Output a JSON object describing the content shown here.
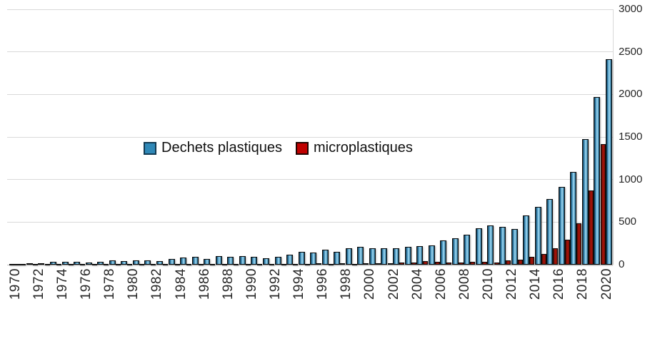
{
  "chart_data": {
    "type": "bar",
    "title": "",
    "xlabel": "",
    "ylabel": "",
    "x": [
      1970,
      1971,
      1972,
      1973,
      1974,
      1975,
      1976,
      1977,
      1978,
      1979,
      1980,
      1981,
      1982,
      1983,
      1984,
      1985,
      1986,
      1987,
      1988,
      1989,
      1990,
      1991,
      1992,
      1993,
      1994,
      1995,
      1996,
      1997,
      1998,
      1999,
      2000,
      2001,
      2002,
      2003,
      2004,
      2005,
      2006,
      2007,
      2008,
      2009,
      2010,
      2011,
      2012,
      2013,
      2014,
      2015,
      2016,
      2017,
      2018,
      2019,
      2020
    ],
    "series": [
      {
        "name": "Dechets plastiques",
        "color": "#2f88b7",
        "values": [
          12,
          14,
          20,
          36,
          34,
          36,
          22,
          34,
          50,
          45,
          48,
          48,
          42,
          70,
          80,
          88,
          65,
          98,
          92,
          98,
          92,
          78,
          90,
          115,
          154,
          146,
          174,
          152,
          196,
          208,
          190,
          193,
          193,
          207,
          215,
          229,
          285,
          314,
          356,
          425,
          459,
          440,
          420,
          575,
          677,
          767,
          914,
          1090,
          1474,
          1969,
          2416
        ]
      },
      {
        "name": "microplastiques",
        "color": "#c00000",
        "values": [
          2,
          2,
          3,
          3,
          3,
          4,
          3,
          4,
          5,
          5,
          5,
          5,
          5,
          6,
          6,
          7,
          7,
          8,
          8,
          8,
          9,
          9,
          11,
          8,
          11,
          8,
          14,
          8,
          17,
          10,
          20,
          17,
          17,
          25,
          25,
          39,
          30,
          25,
          28,
          34,
          34,
          28,
          48,
          62,
          96,
          123,
          193,
          290,
          487,
          873,
          1418
        ]
      }
    ],
    "y_ticks": [
      0,
      500,
      1000,
      1500,
      2000,
      2500,
      3000
    ],
    "ylim": [
      0,
      3000
    ],
    "x_tick_labels": [
      "1970",
      "1972",
      "1974",
      "1976",
      "1978",
      "1980",
      "1982",
      "1984",
      "1986",
      "1988",
      "1990",
      "1992",
      "1994",
      "1996",
      "1998",
      "2000",
      "2002",
      "2004",
      "2006",
      "2008",
      "2010",
      "2012",
      "2014",
      "2016",
      "2018",
      "2020"
    ],
    "grid": "horizontal",
    "legend_position": "center-left, inside plot",
    "y_axis_side": "right"
  },
  "legend": {
    "items": [
      {
        "label": "Dechets plastiques",
        "color": "#2f88b7"
      },
      {
        "label": "microplastiques",
        "color": "#c00000"
      }
    ]
  }
}
